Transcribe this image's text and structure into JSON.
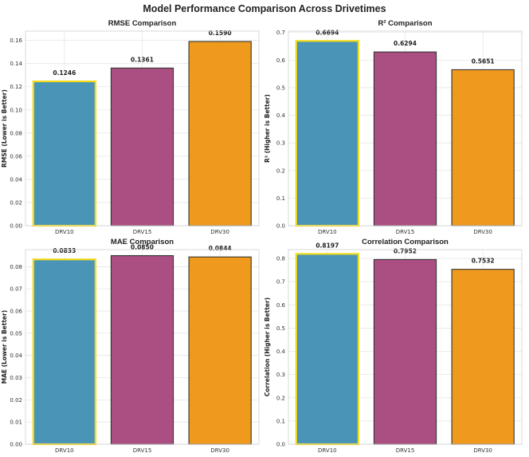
{
  "suptitle": "Model Performance Comparison Across Drivetimes",
  "colors": {
    "bars": [
      "#4a94b8",
      "#ab4f83",
      "#f09a1d"
    ],
    "highlight_edge": "#f2dc1a",
    "edge": "#333333"
  },
  "chart_data": [
    {
      "type": "bar",
      "title": "RMSE Comparison",
      "xlabel": "",
      "ylabel": "RMSE (Lower is Better)",
      "categories": [
        "DRV10",
        "DRV15",
        "DRV30"
      ],
      "values": [
        0.1246,
        0.1361,
        0.159
      ],
      "value_labels": [
        "0.1246",
        "0.1361",
        "0.1590"
      ],
      "ylim": [
        0,
        0.168
      ],
      "yticks": [
        0,
        0.02,
        0.04,
        0.06,
        0.08,
        0.1,
        0.12,
        0.14,
        0.16
      ],
      "ytick_labels": [
        "0.00",
        "0.02",
        "0.04",
        "0.06",
        "0.08",
        "0.10",
        "0.12",
        "0.14",
        "0.16"
      ],
      "highlight_index": 0,
      "grid": true,
      "legend": "none"
    },
    {
      "type": "bar",
      "title": "R² Comparison",
      "xlabel": "",
      "ylabel": "R² (Higher is Better)",
      "categories": [
        "DRV10",
        "DRV15",
        "DRV30"
      ],
      "values": [
        0.6694,
        0.6294,
        0.5651
      ],
      "value_labels": [
        "0.6694",
        "0.6294",
        "0.5651"
      ],
      "ylim": [
        0,
        0.705
      ],
      "yticks": [
        0,
        0.1,
        0.2,
        0.3,
        0.4,
        0.5,
        0.6,
        0.7
      ],
      "ytick_labels": [
        "0.0",
        "0.1",
        "0.2",
        "0.3",
        "0.4",
        "0.5",
        "0.6",
        "0.7"
      ],
      "highlight_index": 0,
      "grid": true,
      "legend": "none"
    },
    {
      "type": "bar",
      "title": "MAE Comparison",
      "xlabel": "",
      "ylabel": "MAE (Lower is Better)",
      "categories": [
        "DRV10",
        "DRV15",
        "DRV30"
      ],
      "values": [
        0.0833,
        0.085,
        0.0844
      ],
      "value_labels": [
        "0.0833",
        "0.0850",
        "0.0844"
      ],
      "ylim": [
        0,
        0.0877
      ],
      "yticks": [
        0,
        0.01,
        0.02,
        0.03,
        0.04,
        0.05,
        0.06,
        0.07,
        0.08
      ],
      "ytick_labels": [
        "0.00",
        "0.01",
        "0.02",
        "0.03",
        "0.04",
        "0.05",
        "0.06",
        "0.07",
        "0.08"
      ],
      "highlight_index": 0,
      "grid": true,
      "legend": "none"
    },
    {
      "type": "bar",
      "title": "Correlation Comparison",
      "xlabel": "",
      "ylabel": "Correlation (Higher is Better)",
      "categories": [
        "DRV10",
        "DRV15",
        "DRV30"
      ],
      "values": [
        0.8197,
        0.7952,
        0.7532
      ],
      "value_labels": [
        "0.8197",
        "0.7952",
        "0.7532"
      ],
      "ylim": [
        0,
        0.838
      ],
      "yticks": [
        0,
        0.1,
        0.2,
        0.3,
        0.4,
        0.5,
        0.6,
        0.7,
        0.8
      ],
      "ytick_labels": [
        "0.0",
        "0.1",
        "0.2",
        "0.3",
        "0.4",
        "0.5",
        "0.6",
        "0.7",
        "0.8"
      ],
      "highlight_index": 0,
      "grid": true,
      "legend": "none"
    }
  ]
}
